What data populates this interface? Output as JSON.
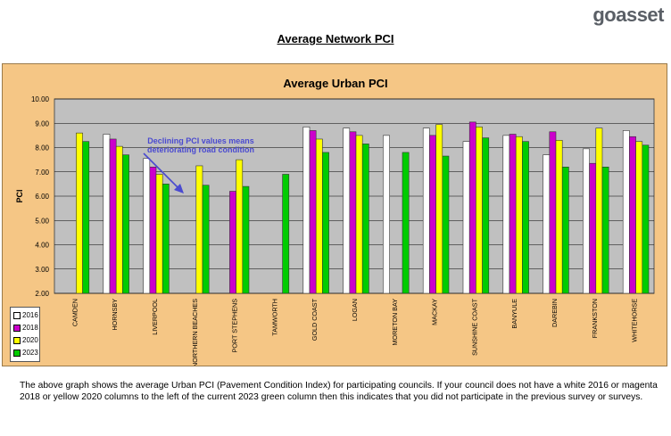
{
  "logo": {
    "text_go": "go",
    "text_asset": "asset"
  },
  "page_title": "Average Network PCI",
  "footnote": "The above graph shows the average Urban PCI (Pavement Condition Index) for participating councils. If your council does not have a white 2016 or magenta 2018 or yellow 2020 columns to the left of the current 2023 green column then this indicates that you did not participate in the previous survey or surveys.",
  "colors": {
    "frame": "#f5c685",
    "plot": "#c0c0c0",
    "annotation": "#4a4ad0"
  },
  "chart_data": {
    "type": "bar",
    "title": "Average Urban PCI",
    "xlabel": "",
    "ylabel": "PCI",
    "ylim": [
      2,
      10
    ],
    "yticks": [
      "2.00",
      "3.00",
      "4.00",
      "5.00",
      "6.00",
      "7.00",
      "8.00",
      "9.00",
      "10.00"
    ],
    "grid": true,
    "legend": "bottom-left",
    "categories": [
      "CAMDEN",
      "HORNSBY",
      "LIVERPOOL",
      "NORTHERN BEACHES",
      "PORT STEPHENS",
      "TAMWORTH",
      "GOLD COAST",
      "LOGAN",
      "MORETON BAY",
      "MACKAY",
      "SUNSHINE COAST",
      "BANYULE",
      "DAREBIN",
      "FRANKSTON",
      "WHITEHORSE"
    ],
    "series": [
      {
        "name": "2016",
        "color": "#ffffff",
        "values": [
          null,
          8.55,
          7.55,
          null,
          null,
          null,
          8.85,
          8.8,
          8.5,
          8.8,
          8.25,
          8.5,
          7.7,
          7.95,
          8.7
        ]
      },
      {
        "name": "2018",
        "color": "#cc00cc",
        "values": [
          null,
          8.35,
          7.2,
          null,
          6.2,
          null,
          8.7,
          8.65,
          null,
          8.5,
          9.05,
          8.55,
          8.65,
          7.35,
          8.45
        ]
      },
      {
        "name": "2020",
        "color": "#ffff00",
        "values": [
          8.6,
          8.05,
          6.9,
          7.25,
          7.5,
          null,
          8.35,
          8.5,
          null,
          8.95,
          8.85,
          8.45,
          8.3,
          8.8,
          8.25
        ]
      },
      {
        "name": "2023",
        "color": "#00cc00",
        "values": [
          8.25,
          7.7,
          6.5,
          6.45,
          6.4,
          6.9,
          7.8,
          8.15,
          7.8,
          7.65,
          8.4,
          8.25,
          7.2,
          7.2,
          8.1
        ]
      }
    ],
    "annotation": {
      "line1": "Declining PCI values means",
      "line2": "deteriorating road condition"
    }
  }
}
